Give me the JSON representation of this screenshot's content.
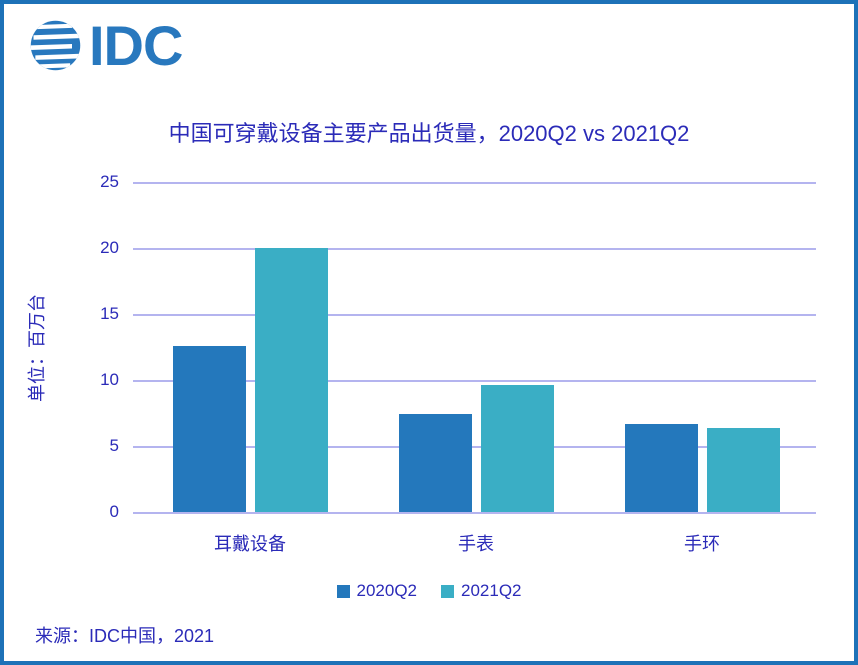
{
  "logo": {
    "text": "IDC",
    "color": "#2878BE",
    "globe_icon": "striped-globe-icon"
  },
  "title": "中国可穿戴设备主要产品出货量，2020Q2 vs 2021Q2",
  "source": "来源：IDC中国，2021",
  "colors": {
    "frame_border": "#1D72B8",
    "gridline": "#B4B4EF",
    "text": "#2B2BB8",
    "series_2020": "#2478BC",
    "series_2021": "#3AAEC5"
  },
  "chart_data": {
    "type": "bar",
    "title": "中国可穿戴设备主要产品出货量，2020Q2 vs 2021Q2",
    "categories": [
      "耳戴设备",
      "手表",
      "手环"
    ],
    "series": [
      {
        "name": "2020Q2",
        "color": "#2478BC",
        "values": [
          12.6,
          7.4,
          6.7
        ]
      },
      {
        "name": "2021Q2",
        "color": "#3AAEC5",
        "values": [
          20.0,
          9.6,
          6.4
        ]
      }
    ],
    "xlabel": "",
    "ylabel": "单位：百万台",
    "ylim": [
      0,
      25
    ],
    "yticks": [
      0,
      5,
      10,
      15,
      20,
      25
    ],
    "grid": true,
    "legend_position": "bottom",
    "unit": "百万台"
  }
}
